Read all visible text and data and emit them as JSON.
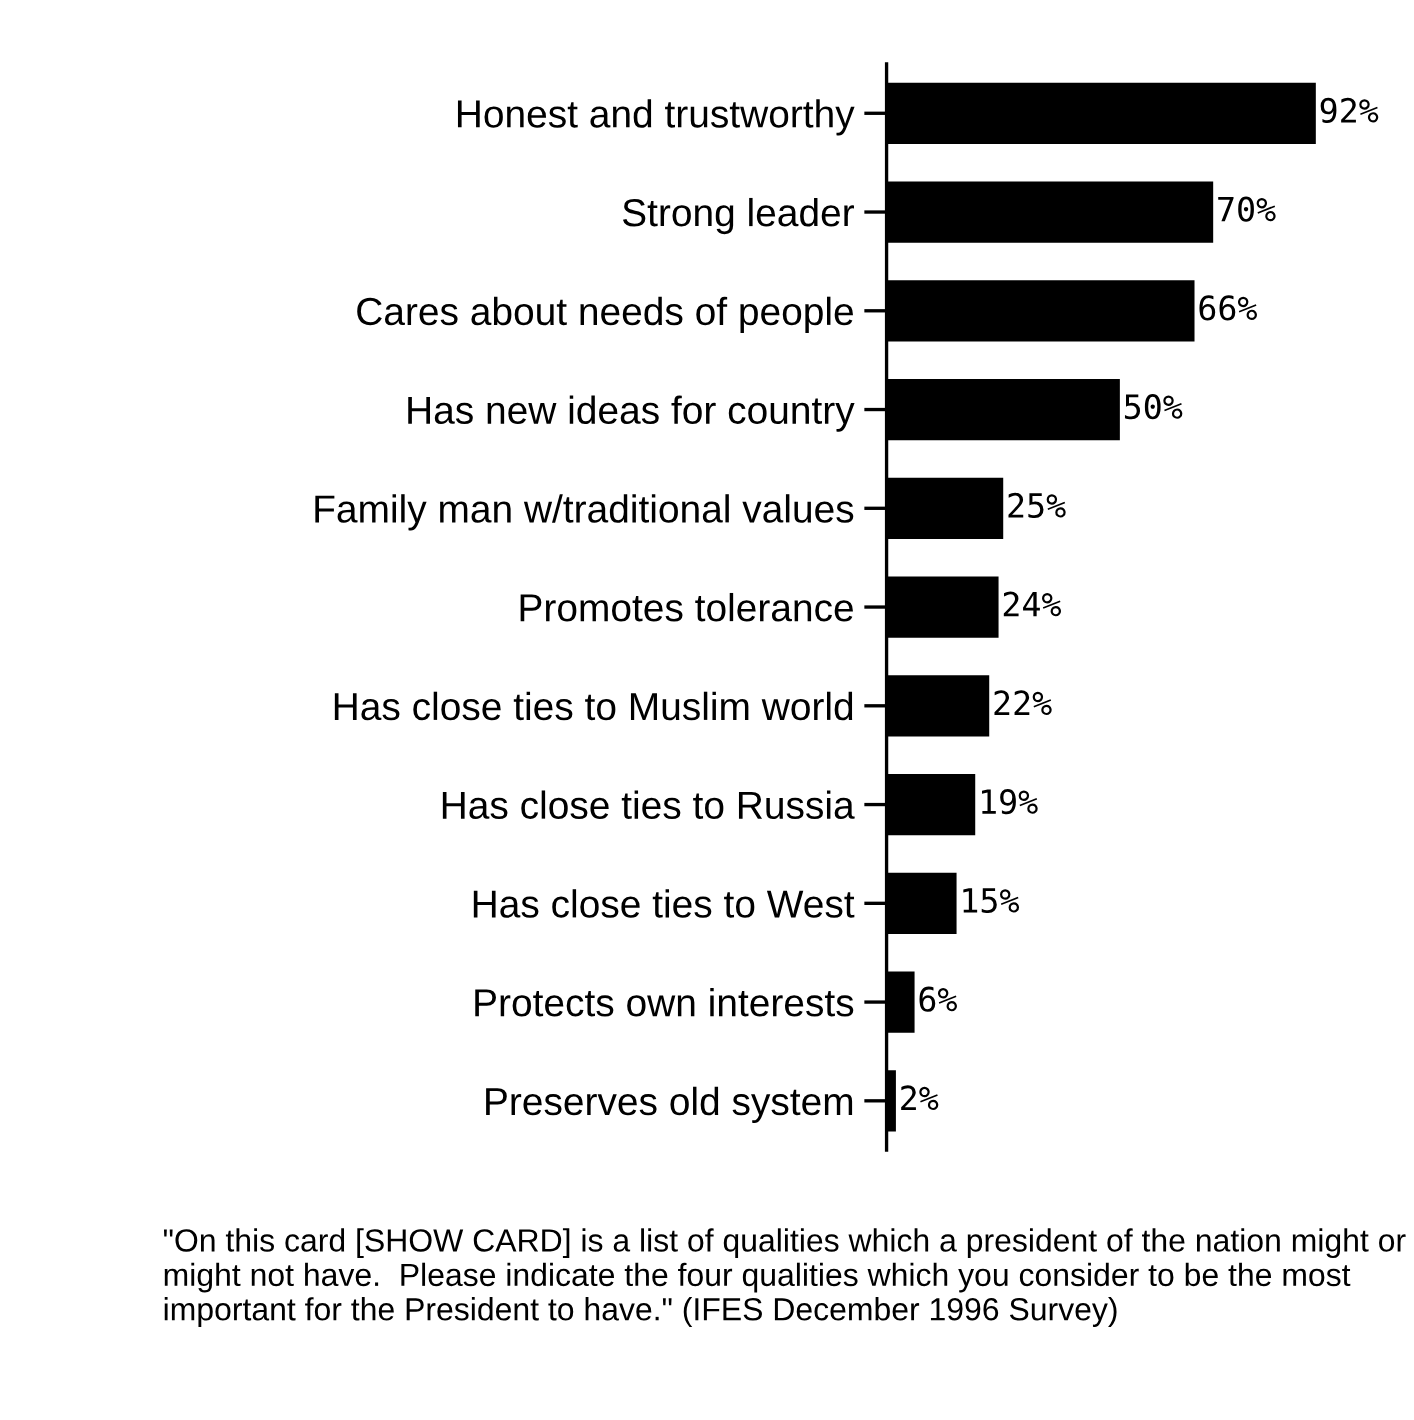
{
  "chart_data": {
    "type": "bar",
    "orientation": "horizontal",
    "categories": [
      "Honest and trustworthy",
      "Strong leader",
      "Cares about needs of people",
      "Has new ideas for country",
      "Family man w/traditional values",
      "Promotes tolerance",
      "Has close ties to Muslim world",
      "Has close ties to Russia",
      "Has close ties to West",
      "Protects own interests",
      "Preserves old system"
    ],
    "values": [
      92,
      70,
      66,
      50,
      25,
      24,
      22,
      19,
      15,
      6,
      2
    ],
    "value_labels": [
      "92%",
      "70%",
      "66%",
      "50%",
      "25%",
      "24%",
      "22%",
      "19%",
      "15%",
      "6%",
      "2%"
    ],
    "color": "#000000",
    "grid": false,
    "tick_labels": "y",
    "annotations": [
      "\"On this card [SHOW CARD] is a list of qualities which a president of the nation might or might not have.  Please indicate the four qualities which you consider to be the most important for the President to have.\" (IFES December 1996 Survey)"
    ]
  }
}
